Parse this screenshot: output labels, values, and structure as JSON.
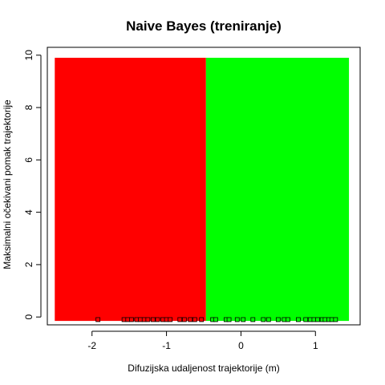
{
  "chart_data": {
    "type": "scatter",
    "title": "Naive Bayes (treniranje)",
    "xlabel": "Difuzijska udaljenost trajektorije (m)",
    "ylabel": "Maksimalni očekivani pomak trajektorije",
    "xlim": [
      -2.6,
      1.6
    ],
    "ylim": [
      -0.3,
      10.3
    ],
    "x_ticks": [
      -2,
      -1,
      0,
      1
    ],
    "x_tick_labels": [
      "-2",
      "-1",
      "0",
      "1"
    ],
    "y_ticks": [
      0,
      2,
      4,
      6,
      8,
      10
    ],
    "y_tick_labels": [
      "0",
      "2",
      "4",
      "6",
      "8",
      "10"
    ],
    "grid": false,
    "decision_regions": [
      {
        "x_from": -2.5,
        "x_to": -0.47,
        "y_from": -0.15,
        "y_to": 9.9,
        "color": "#ff0000"
      },
      {
        "x_from": -0.47,
        "x_to": 1.45,
        "y_from": -0.15,
        "y_to": 9.9,
        "color": "#00ff00"
      }
    ],
    "points": {
      "marker": "square",
      "x": [
        -1.92,
        -1.57,
        -1.52,
        -1.47,
        -1.4,
        -1.35,
        -1.3,
        -1.25,
        -1.18,
        -1.12,
        -1.05,
        -1.0,
        -0.95,
        -0.82,
        -0.76,
        -0.68,
        -0.62,
        -0.53,
        -0.38,
        -0.34,
        -0.2,
        -0.16,
        -0.05,
        0.03,
        0.16,
        0.3,
        0.37,
        0.5,
        0.58,
        0.63,
        0.77,
        0.87,
        0.93,
        0.98,
        1.03,
        1.09,
        1.13,
        1.18,
        1.22,
        1.27
      ],
      "y": [
        -0.1,
        -0.1,
        -0.1,
        -0.1,
        -0.1,
        -0.1,
        -0.1,
        -0.1,
        -0.1,
        -0.1,
        -0.1,
        -0.1,
        -0.1,
        -0.1,
        -0.1,
        -0.1,
        -0.1,
        -0.1,
        -0.1,
        -0.1,
        -0.1,
        -0.1,
        -0.1,
        -0.1,
        -0.1,
        -0.1,
        -0.1,
        -0.1,
        -0.1,
        -0.1,
        -0.1,
        -0.1,
        -0.1,
        -0.1,
        -0.1,
        -0.1,
        -0.1,
        -0.1,
        -0.1,
        -0.1
      ],
      "colors": [
        "#ff0000",
        "#ff0000",
        "#ff0000",
        "#ff0000",
        "#ff0000",
        "#ff0000",
        "#ff0000",
        "#ff0000",
        "#ff0000",
        "#ff0000",
        "#ff0000",
        "#ff0000",
        "#ff0000",
        "#ff0000",
        "#ff0000",
        "#ff0000",
        "#ff0000",
        "#ff0000",
        "#00ff00",
        "#00ff00",
        "#00ff00",
        "#00ff00",
        "#00ff00",
        "#00ff00",
        "#00ff00",
        "#00ff00",
        "#00ff00",
        "#00ff00",
        "#00ff00",
        "#00ff00",
        "#00ff00",
        "#00ff00",
        "#00ff00",
        "#00ff00",
        "#00ff00",
        "#00ff00",
        "#00ff00",
        "#00ff00",
        "#00ff00",
        "#00ff00"
      ]
    }
  }
}
